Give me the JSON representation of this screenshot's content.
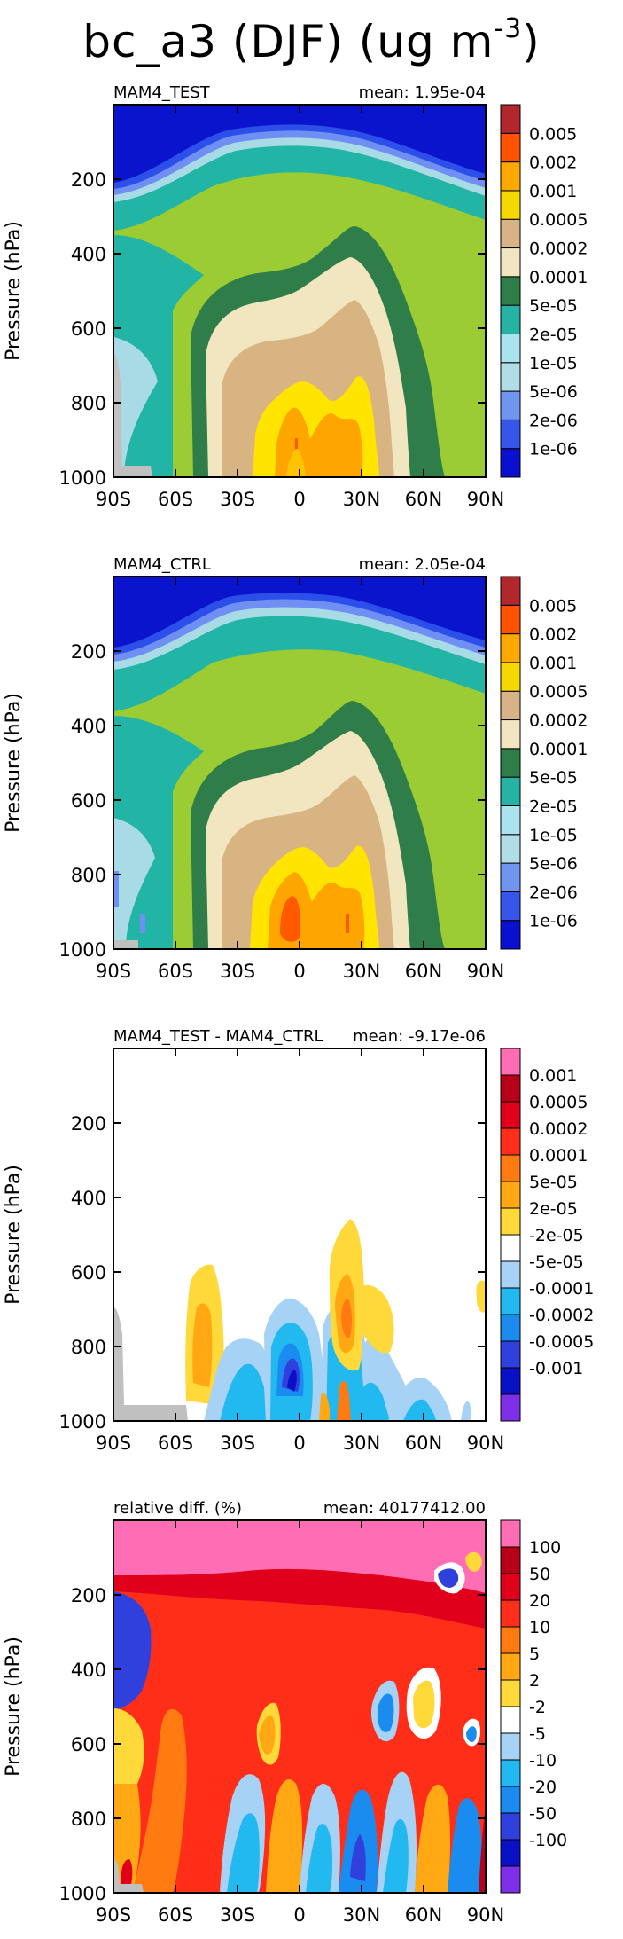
{
  "title": {
    "main": "bc_a3 (DJF) (ug m",
    "exponent": "-3",
    "close": ")"
  },
  "colors": {
    "conc_scale": [
      "#0a14cc",
      "#2b4fe8",
      "#6f8ff2",
      "#a8dbe6",
      "#a3e0e8",
      "#22b5a5",
      "#2f7d49",
      "#f2e6c0",
      "#d9b483",
      "#9bcc34",
      "#ffe400",
      "#ffa500",
      "#ff5a00",
      "#b3262b"
    ],
    "conc_legend": [
      "#0a0fd0",
      "#3556e8",
      "#7095ef",
      "#b0dde6",
      "#a9e3ee",
      "#26b3a6",
      "#2e7e4a",
      "#f1e6c2",
      "#d7b386",
      "#f5d800",
      "#ffa800",
      "#ff5300",
      "#b1272b"
    ],
    "diff_legend": [
      "#7e2fe8",
      "#0a10c8",
      "#3040dc",
      "#1a8cf0",
      "#22b8f0",
      "#a6d2f6",
      "#ffffff",
      "#ffd83a",
      "#ffa814",
      "#ff7a10",
      "#ff2e18",
      "#e0001c",
      "#b80018",
      "#ff6eb4"
    ],
    "missing": "#c0c0c0"
  },
  "panels": [
    {
      "left_label": "MAM4_TEST",
      "right_label": "mean: 1.95e-04",
      "legend_labels": [
        "0.005",
        "0.002",
        "0.001",
        "0.0005",
        "0.0002",
        "0.0001",
        "5e-05",
        "2e-05",
        "1e-05",
        "5e-06",
        "2e-06",
        "1e-06"
      ],
      "legend_type": "conc"
    },
    {
      "left_label": "MAM4_CTRL",
      "right_label": "mean: 2.05e-04",
      "legend_labels": [
        "0.005",
        "0.002",
        "0.001",
        "0.0005",
        "0.0002",
        "0.0001",
        "5e-05",
        "2e-05",
        "1e-05",
        "5e-06",
        "2e-06",
        "1e-06"
      ],
      "legend_type": "conc"
    },
    {
      "left_label": "MAM4_TEST - MAM4_CTRL",
      "right_label": "mean: -9.17e-06",
      "legend_labels": [
        "0.001",
        "0.0005",
        "0.0002",
        "0.0001",
        "5e-05",
        "2e-05",
        "-2e-05",
        "-5e-05",
        "-0.0001",
        "-0.0002",
        "-0.0005",
        "-0.001"
      ],
      "legend_type": "diff"
    },
    {
      "left_label": "relative diff. (%)",
      "right_label": "mean: 40177412.00",
      "legend_labels": [
        "100",
        "50",
        "20",
        "10",
        "5",
        "2",
        "-2",
        "-5",
        "-10",
        "-20",
        "-50",
        "-100"
      ],
      "legend_type": "diff"
    }
  ],
  "chart_data": [
    {
      "type": "heatmap",
      "panel_title": "MAM4_TEST",
      "mean": "1.95e-04",
      "xlabel": "",
      "ylabel": "Pressure (hPa)",
      "x_ticks": [
        "90S",
        "60S",
        "30S",
        "0",
        "30N",
        "60N",
        "90N"
      ],
      "x_tick_values": [
        -90,
        -60,
        -30,
        0,
        30,
        60,
        90
      ],
      "y_ticks": [
        200,
        400,
        600,
        800,
        1000
      ],
      "ylim": [
        1000,
        0
      ],
      "xlim": [
        -90,
        90
      ],
      "levels": [
        "1e-06",
        "2e-06",
        "5e-06",
        "1e-05",
        "2e-05",
        "5e-05",
        "0.0001",
        "0.0002",
        "0.0005",
        "0.001",
        "0.002",
        "0.005"
      ]
    },
    {
      "type": "heatmap",
      "panel_title": "MAM4_CTRL",
      "mean": "2.05e-04",
      "xlabel": "",
      "ylabel": "Pressure (hPa)",
      "x_ticks": [
        "90S",
        "60S",
        "30S",
        "0",
        "30N",
        "60N",
        "90N"
      ],
      "x_tick_values": [
        -90,
        -60,
        -30,
        0,
        30,
        60,
        90
      ],
      "y_ticks": [
        200,
        400,
        600,
        800,
        1000
      ],
      "ylim": [
        1000,
        0
      ],
      "xlim": [
        -90,
        90
      ],
      "levels": [
        "1e-06",
        "2e-06",
        "5e-06",
        "1e-05",
        "2e-05",
        "5e-05",
        "0.0001",
        "0.0002",
        "0.0005",
        "0.001",
        "0.002",
        "0.005"
      ]
    },
    {
      "type": "heatmap",
      "panel_title": "MAM4_TEST - MAM4_CTRL",
      "mean": "-9.17e-06",
      "xlabel": "",
      "ylabel": "Pressure (hPa)",
      "x_ticks": [
        "90S",
        "60S",
        "30S",
        "0",
        "30N",
        "60N",
        "90N"
      ],
      "x_tick_values": [
        -90,
        -60,
        -30,
        0,
        30,
        60,
        90
      ],
      "y_ticks": [
        200,
        400,
        600,
        800,
        1000
      ],
      "ylim": [
        1000,
        0
      ],
      "xlim": [
        -90,
        90
      ],
      "levels": [
        "-0.001",
        "-0.0005",
        "-0.0002",
        "-0.0001",
        "-5e-05",
        "-2e-05",
        "2e-05",
        "5e-05",
        "0.0001",
        "0.0002",
        "0.0005",
        "0.001"
      ]
    },
    {
      "type": "heatmap",
      "panel_title": "relative diff. (%)",
      "mean": "40177412.00",
      "xlabel": "",
      "ylabel": "Pressure (hPa)",
      "x_ticks": [
        "90S",
        "60S",
        "30S",
        "0",
        "30N",
        "60N",
        "90N"
      ],
      "x_tick_values": [
        -90,
        -60,
        -30,
        0,
        30,
        60,
        90
      ],
      "y_ticks": [
        200,
        400,
        600,
        800,
        1000
      ],
      "ylim": [
        1000,
        0
      ],
      "xlim": [
        -90,
        90
      ],
      "levels": [
        "-100",
        "-50",
        "-20",
        "-10",
        "-5",
        "-2",
        "2",
        "5",
        "10",
        "20",
        "50",
        "100"
      ]
    }
  ],
  "axes": {
    "ylabel": "Pressure (hPa)",
    "x_ticks": [
      "90S",
      "60S",
      "30S",
      "0",
      "30N",
      "60N",
      "90N"
    ],
    "y_ticks": [
      "200",
      "400",
      "600",
      "800",
      "1000"
    ]
  }
}
